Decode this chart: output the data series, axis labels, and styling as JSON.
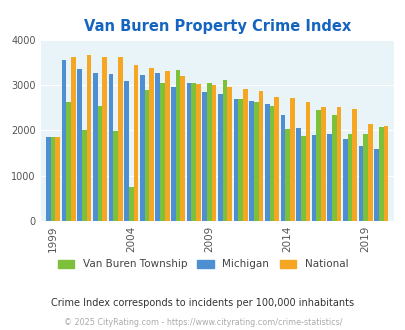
{
  "title": "Van Buren Property Crime Index",
  "title_color": "#1565c0",
  "background_color": "#e8f4f8",
  "plot_bg_color": "#e8f4f8",
  "fig_bg_color": "#ffffff",
  "years": [
    1999,
    2000,
    2001,
    2002,
    2003,
    2004,
    2005,
    2006,
    2007,
    2008,
    2009,
    2010,
    2011,
    2012,
    2013,
    2014,
    2015,
    2016,
    2017,
    2018,
    2019,
    2020
  ],
  "van_buren": [
    1850,
    2630,
    2000,
    2540,
    1980,
    760,
    2890,
    3050,
    3340,
    3040,
    3050,
    3100,
    2700,
    2620,
    2540,
    2040,
    1880,
    2440,
    2330,
    1930,
    1920,
    2080
  ],
  "michigan": [
    1850,
    3560,
    3360,
    3270,
    3250,
    3090,
    3210,
    3270,
    2960,
    3050,
    2840,
    2800,
    2680,
    2650,
    2590,
    2330,
    2050,
    1890,
    1920,
    1820,
    1650,
    1590
  ],
  "national": [
    1850,
    3620,
    3660,
    3620,
    3610,
    3450,
    3370,
    3310,
    3200,
    3020,
    2990,
    2960,
    2910,
    2870,
    2740,
    2710,
    2620,
    2510,
    2510,
    2460,
    2150,
    2100
  ],
  "vb_color": "#7dc13a",
  "mi_color": "#4d8fd1",
  "na_color": "#f5a623",
  "ylim": [
    0,
    4000
  ],
  "yticks": [
    0,
    1000,
    2000,
    3000,
    4000
  ],
  "xtick_labels": [
    "1999",
    "2004",
    "2009",
    "2014",
    "2019"
  ],
  "xtick_positions": [
    1999,
    2004,
    2009,
    2014,
    2019
  ],
  "legend_labels": [
    "Van Buren Township",
    "Michigan",
    "National"
  ],
  "footnote": "Crime Index corresponds to incidents per 100,000 inhabitants",
  "copyright": "© 2025 CityRating.com - https://www.cityrating.com/crime-statistics/",
  "footnote_color": "#333333",
  "copyright_color": "#aaaaaa"
}
